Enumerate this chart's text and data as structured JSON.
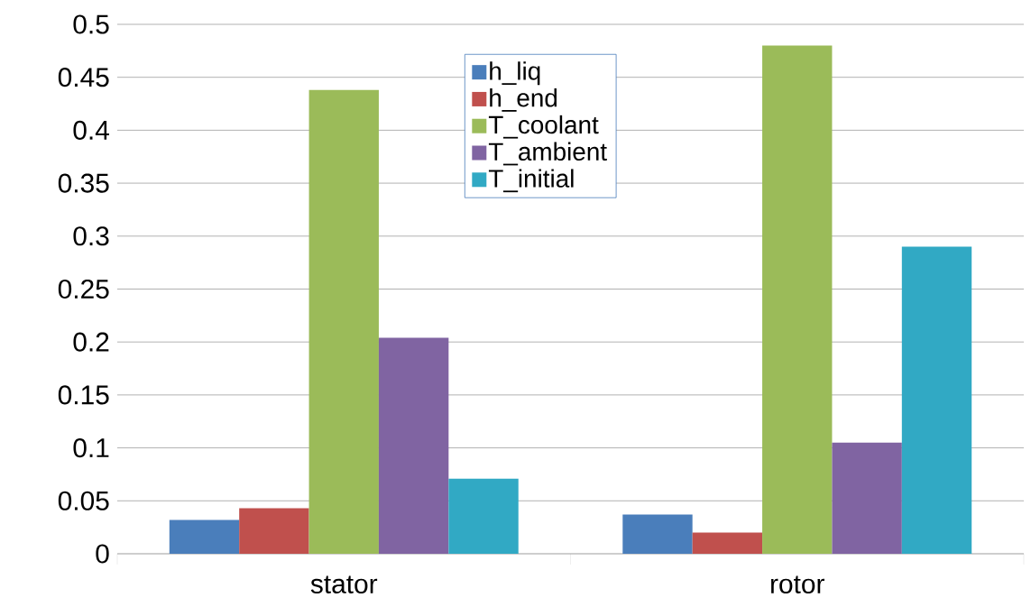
{
  "chart_data": {
    "type": "bar",
    "categories": [
      "stator",
      "rotor"
    ],
    "series": [
      {
        "name": "h_liq",
        "color": "#4a7ebb",
        "values": [
          0.032,
          0.037
        ]
      },
      {
        "name": "h_end",
        "color": "#c0504d",
        "values": [
          0.043,
          0.02
        ]
      },
      {
        "name": "T_coolant",
        "color": "#9bbb59",
        "values": [
          0.438,
          0.48
        ]
      },
      {
        "name": "T_ambient",
        "color": "#8064a2",
        "values": [
          0.204,
          0.105
        ]
      },
      {
        "name": "T_initial",
        "color": "#31a9c4",
        "values": [
          0.071,
          0.29
        ]
      }
    ],
    "ylim": [
      0,
      0.5
    ],
    "yticks": [
      0,
      0.05,
      0.1,
      0.15,
      0.2,
      0.25,
      0.3,
      0.35,
      0.4,
      0.45,
      0.5
    ],
    "grid": "y",
    "legend": "top"
  }
}
